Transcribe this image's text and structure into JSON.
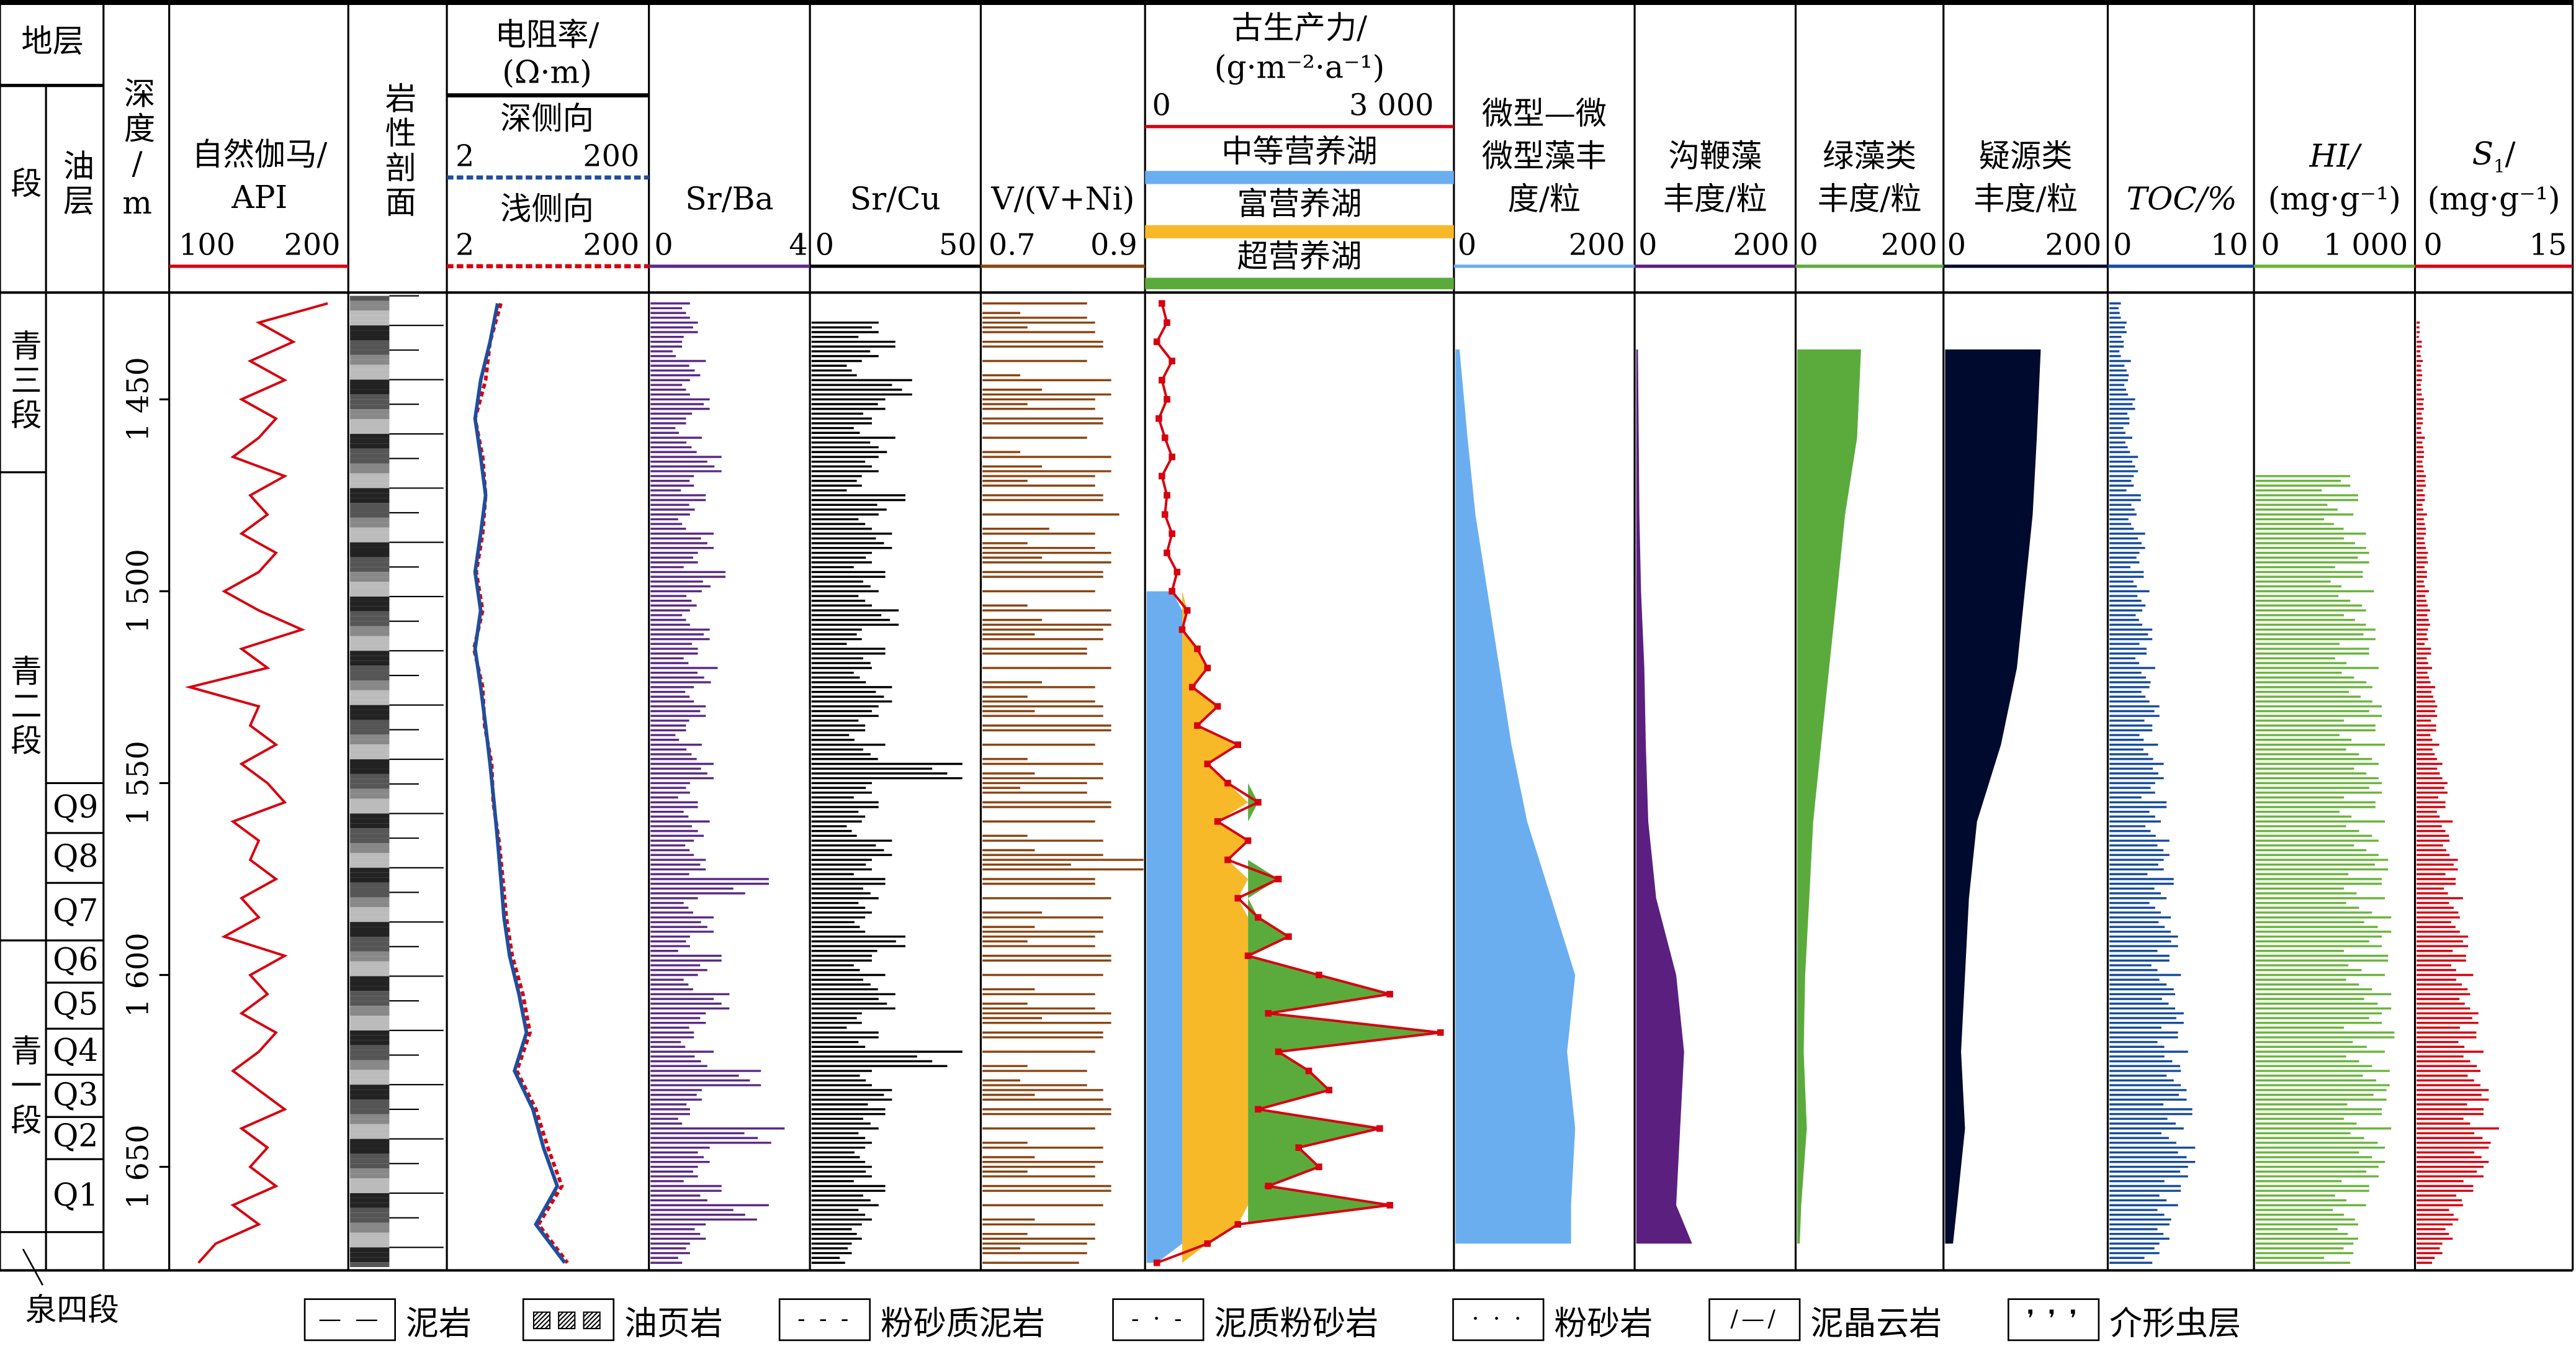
{
  "header": {
    "strata": "地层",
    "member": "段",
    "oil_layer": "油层",
    "depth": "深度/m",
    "gr_title": "自然伽马/",
    "gr_unit": "API",
    "gr_min": "100",
    "gr_max": "200",
    "lith": "岩性剖面",
    "res_title": "电阻率/",
    "res_unit": "(Ω·m)",
    "res_deep": "深侧向",
    "res_shallow": "浅侧向",
    "res_min": "2",
    "res_max": "200",
    "srba": "Sr/Ba",
    "srba_min": "0",
    "srba_max": "4",
    "srcu": "Sr/Cu",
    "srcu_min": "0",
    "srcu_max": "50",
    "vni": "V/(V+Ni)",
    "vni_min": "0.7",
    "vni_max": "0.9",
    "paleo_title": "古生产力/",
    "paleo_unit": "(g·m⁻²·a⁻¹)",
    "paleo_min": "0",
    "paleo_max": "3 000",
    "zone1": "中等营养湖",
    "zone2": "富营养湖",
    "zone3": "超营养湖",
    "micro_l1": "微型—微",
    "micro_l2": "微型藻丰",
    "micro_l3": "度/粒",
    "dino_l1": "沟鞭藻",
    "dino_l2": "丰度/粒",
    "green_l1": "绿藻类",
    "green_l2": "丰度/粒",
    "acri_l1": "疑源类",
    "acri_l2": "丰度/粒",
    "alg_min": "0",
    "alg_max": "200",
    "toc": "TOC/%",
    "toc_min": "0",
    "toc_max": "10",
    "hi": "HI/",
    "hi_unit": "(mg·g⁻¹)",
    "hi_min": "0",
    "hi_max": "1 000",
    "s1": "S",
    "s1_sub": "1",
    "s1_slash": "/",
    "s1_unit": "(mg·g⁻¹)",
    "s1_min": "0",
    "s1_max": "15"
  },
  "members": [
    {
      "label": "青三段",
      "top": 1422,
      "bottom": 1469
    },
    {
      "label": "青二段",
      "top": 1469,
      "bottom": 1591
    },
    {
      "label": "青一段",
      "top": 1591,
      "bottom": 1667
    },
    {
      "label": "泉四段",
      "top": 1667,
      "bottom": 1677
    }
  ],
  "oil_layers": [
    {
      "label": "Q9",
      "top": 1550,
      "bottom": 1563
    },
    {
      "label": "Q8",
      "top": 1563,
      "bottom": 1576
    },
    {
      "label": "Q7",
      "top": 1576,
      "bottom": 1591
    },
    {
      "label": "Q6",
      "top": 1591,
      "bottom": 1602
    },
    {
      "label": "Q5",
      "top": 1602,
      "bottom": 1614
    },
    {
      "label": "Q4",
      "top": 1614,
      "bottom": 1626
    },
    {
      "label": "Q3",
      "top": 1626,
      "bottom": 1637
    },
    {
      "label": "Q2",
      "top": 1637,
      "bottom": 1648
    },
    {
      "label": "Q1",
      "top": 1648,
      "bottom": 1667
    }
  ],
  "legend": [
    {
      "label": "泥岩",
      "icon": "mudstone-icon"
    },
    {
      "label": "油页岩",
      "icon": "oil-shale-icon"
    },
    {
      "label": "粉砂质泥岩",
      "icon": "silty-mudstone-icon"
    },
    {
      "label": "泥质粉砂岩",
      "icon": "argillaceous-siltstone-icon"
    },
    {
      "label": "粉砂岩",
      "icon": "siltstone-icon"
    },
    {
      "label": "泥晶云岩",
      "icon": "micritic-dolomite-icon"
    },
    {
      "label": "介形虫层",
      "icon": "ostracod-layer-icon"
    }
  ],
  "colors": {
    "gr": "#d7000f",
    "deep": "#1f4e9c",
    "shallow": "#d7000f",
    "srba": "#5b2a86",
    "srcu": "#000000",
    "vni": "#8b4513",
    "paleo": "#d7000f",
    "zone1": "#6aaef0",
    "zone2": "#f7b928",
    "zone3": "#5aab3c",
    "micro": "#6aaef0",
    "dino": "#5b1f80",
    "green": "#5aab3c",
    "acri": "#000a2e",
    "toc": "#164c9e",
    "hi": "#6ab53c",
    "s1": "#d7000f"
  },
  "chart_data": {
    "type": "line",
    "ylabel": "深度/m",
    "ylim": [
      1422,
      1677
    ],
    "yticks": [
      1450,
      1500,
      1550,
      1600,
      1650
    ],
    "ytick_labels": [
      "1 450",
      "1 500",
      "1 550",
      "1 600",
      "1 650"
    ],
    "sample_depth_start": 1425,
    "sample_depth_step": 5,
    "series": {
      "gr": {
        "name": "自然伽马",
        "unit": "API",
        "xlim": [
          100,
          200
        ],
        "style": "line",
        "values": [
          190,
          150,
          170,
          145,
          165,
          140,
          160,
          150,
          135,
          165,
          145,
          155,
          140,
          160,
          150,
          130,
          150,
          175,
          140,
          155,
          110,
          150,
          145,
          160,
          140,
          155,
          165,
          135,
          150,
          145,
          160,
          140,
          150,
          130,
          165,
          145,
          155,
          140,
          160,
          150,
          135,
          150,
          165,
          140,
          155,
          145,
          160,
          135,
          150,
          125,
          115
        ]
      },
      "srba": {
        "name": "Sr/Ba",
        "xlim": [
          0,
          4
        ],
        "style": "bar",
        "values": [
          1.0,
          1.2,
          0.8,
          1.4,
          1.0,
          1.5,
          0.9,
          1.3,
          1.8,
          1.1,
          1.4,
          1.0,
          1.6,
          1.2,
          1.9,
          1.3,
          1.0,
          1.5,
          1.2,
          1.7,
          1.1,
          1.4,
          0.9,
          1.3,
          1.6,
          1.0,
          1.2,
          1.5,
          1.1,
          1.4,
          3.0,
          1.2,
          1.6,
          1.0,
          1.8,
          1.2,
          2.0,
          1.4,
          1.1,
          1.6,
          2.8,
          1.3,
          1.0,
          3.4,
          1.5,
          1.2,
          1.8,
          3.0,
          1.4,
          1.0,
          0.8
        ]
      },
      "srcu": {
        "name": "Sr/Cu",
        "xlim": [
          0,
          50
        ],
        "style": "bar",
        "values": [
          0,
          20,
          25,
          15,
          30,
          22,
          18,
          25,
          20,
          15,
          28,
          20,
          24,
          18,
          22,
          20,
          26,
          15,
          22,
          18,
          24,
          20,
          16,
          22,
          45,
          18,
          20,
          15,
          24,
          18,
          22,
          20,
          16,
          28,
          18,
          22,
          25,
          15,
          20,
          45,
          18,
          24,
          22,
          20,
          16,
          18,
          22,
          20,
          15,
          12,
          10
        ]
      },
      "vni": {
        "name": "V/(V+Ni)",
        "xlim": [
          0.7,
          0.9
        ],
        "style": "bar",
        "values": [
          0.83,
          0.84,
          0.85,
          0.83,
          0.86,
          0.84,
          0.85,
          0.83,
          0.86,
          0.84,
          0.85,
          0.87,
          0.84,
          0.86,
          0.85,
          0.84,
          0.86,
          0.85,
          0.83,
          0.86,
          0.84,
          0.85,
          0.86,
          0.84,
          0.85,
          0.83,
          0.86,
          0.84,
          0.85,
          0.9,
          0.84,
          0.86,
          0.85,
          0.84,
          0.86,
          0.85,
          0.84,
          0.86,
          0.85,
          0.84,
          0.83,
          0.85,
          0.86,
          0.84,
          0.85,
          0.84,
          0.86,
          0.85,
          0.84,
          0.83,
          0.82
        ]
      },
      "paleo": {
        "name": "古生产力",
        "unit": "g·m⁻²·a⁻¹",
        "xlim": [
          0,
          3000
        ],
        "zone_limits": [
          0,
          350,
          1000,
          3000
        ],
        "style": "line-zones",
        "values": [
          150,
          200,
          100,
          250,
          150,
          200,
          120,
          180,
          250,
          150,
          200,
          180,
          250,
          200,
          300,
          250,
          400,
          350,
          500,
          600,
          450,
          700,
          500,
          900,
          600,
          800,
          1100,
          700,
          1000,
          800,
          1300,
          900,
          1100,
          1400,
          1000,
          1700,
          2400,
          1200,
          2900,
          1300,
          1600,
          1800,
          1100,
          2300,
          1500,
          1700,
          1200,
          2400,
          900,
          600,
          100
        ]
      },
      "toc": {
        "name": "TOC",
        "unit": "%",
        "xlim": [
          0,
          10
        ],
        "style": "bar",
        "values": [
          0.8,
          1.2,
          1.0,
          1.5,
          1.3,
          1.8,
          1.4,
          1.6,
          2.0,
          1.7,
          2.2,
          1.9,
          2.5,
          2.1,
          2.4,
          2.8,
          2.3,
          3.0,
          2.6,
          3.2,
          2.8,
          3.5,
          3.0,
          3.4,
          3.8,
          3.2,
          4.0,
          3.6,
          4.2,
          3.8,
          4.5,
          4.0,
          4.3,
          4.8,
          4.2,
          5.0,
          4.6,
          5.2,
          4.8,
          5.5,
          5.0,
          5.4,
          5.8,
          5.2,
          6.0,
          5.5,
          5.0,
          4.8,
          4.2,
          3.5,
          3.0
        ]
      },
      "hi": {
        "name": "HI",
        "unit": "mg·g⁻¹",
        "xlim": [
          0,
          1000
        ],
        "style": "bar",
        "values": [
          0,
          0,
          0,
          0,
          0,
          0,
          0,
          0,
          0,
          600,
          650,
          620,
          700,
          720,
          680,
          750,
          700,
          760,
          720,
          780,
          740,
          800,
          760,
          820,
          780,
          800,
          760,
          820,
          780,
          840,
          800,
          820,
          860,
          800,
          840,
          820,
          860,
          800,
          880,
          820,
          850,
          830,
          800,
          860,
          820,
          780,
          720,
          700,
          650,
          620,
          600
        ]
      },
      "s1": {
        "name": "S1",
        "unit": "mg·g⁻¹",
        "xlim": [
          0,
          15
        ],
        "style": "bar",
        "values": [
          0,
          0.3,
          0.5,
          0.6,
          0.5,
          0.7,
          0.6,
          0.8,
          0.7,
          0.9,
          0.8,
          1.0,
          0.9,
          1.1,
          1.0,
          1.2,
          1.3,
          1.1,
          1.4,
          1.5,
          1.8,
          2.0,
          1.9,
          2.2,
          2.5,
          3.0,
          2.8,
          3.5,
          3.2,
          4.0,
          3.8,
          4.5,
          4.2,
          5.0,
          4.8,
          5.5,
          5.2,
          6.0,
          5.8,
          6.5,
          6.2,
          7.0,
          6.5,
          8.0,
          7.0,
          6.5,
          5.5,
          4.5,
          3.5,
          2.5,
          1.5
        ]
      }
    },
    "resistivity": {
      "xlim": [
        2,
        200
      ],
      "scale": "log",
      "depths": [
        1425,
        1435,
        1445,
        1455,
        1465,
        1475,
        1485,
        1495,
        1505,
        1515,
        1525,
        1535,
        1545,
        1555,
        1565,
        1575,
        1585,
        1595,
        1605,
        1615,
        1625,
        1635,
        1645,
        1655,
        1665,
        1675
      ],
      "deep": [
        6,
        5,
        4,
        3.5,
        4,
        4.5,
        4,
        3.5,
        4,
        3.5,
        4,
        4.5,
        5,
        5.5,
        6,
        6.5,
        7,
        8,
        10,
        12,
        9,
        14,
        18,
        25,
        15,
        30
      ],
      "shallow": [
        6.5,
        5,
        4.5,
        3.5,
        4.2,
        4.5,
        4.2,
        3.6,
        4.2,
        3.4,
        4.2,
        4.4,
        5.2,
        5.4,
        6.2,
        6.8,
        7.4,
        8.5,
        11,
        13,
        9.5,
        15,
        20,
        28,
        16,
        32
      ]
    },
    "algae": {
      "xlim": [
        0,
        200
      ],
      "depths": [
        1437,
        1460,
        1480,
        1500,
        1520,
        1540,
        1560,
        1580,
        1600,
        1620,
        1640,
        1660,
        1670
      ],
      "micro": [
        5,
        15,
        25,
        40,
        55,
        70,
        90,
        120,
        150,
        140,
        150,
        145,
        145
      ],
      "dino": [
        2,
        3,
        4,
        6,
        10,
        12,
        15,
        25,
        50,
        60,
        55,
        50,
        70
      ],
      "green": [
        80,
        75,
        60,
        50,
        40,
        30,
        20,
        15,
        10,
        8,
        12,
        5,
        3
      ],
      "acri": [
        120,
        115,
        110,
        100,
        90,
        70,
        40,
        30,
        25,
        20,
        25,
        15,
        10
      ]
    }
  }
}
